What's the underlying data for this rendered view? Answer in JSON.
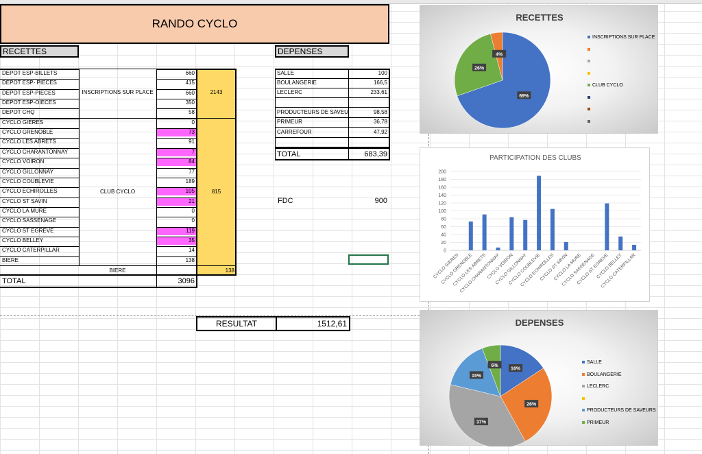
{
  "sheet": {
    "title": "RANDO CYCLO",
    "recettes_header": "RECETTES",
    "depenses_header": "DEPENSES",
    "group_inscriptions": "INSCRIPTIONS SUR PLACE",
    "group_club": "CLUB CYCLO",
    "group_biere": "BIERE",
    "total_inscriptions": "2143",
    "total_club": "815",
    "total_biere": "138",
    "total_label": "TOTAL",
    "total_recettes": "3096",
    "resultat_label": "RESULTAT",
    "resultat_value": "1512,61",
    "fdc_label": "FDC",
    "fdc_value": "900",
    "recettes": [
      {
        "label": "DEPOT ESP-BILLETS",
        "value": "660",
        "pink": false
      },
      {
        "label": "DEPOT ESP- PIECES",
        "value": "415",
        "pink": false
      },
      {
        "label": "DEPOT ESP-PIECES",
        "value": "660",
        "pink": false
      },
      {
        "label": "DEPOT ESP-OIECES",
        "value": "350",
        "pink": false
      },
      {
        "label": "DEPOT CHQ",
        "value": "58",
        "pink": false
      },
      {
        "label": "CYCLO GIERES",
        "value": "0",
        "pink": false
      },
      {
        "label": "CYCLO GRENOBLE",
        "value": "73",
        "pink": true
      },
      {
        "label": "CYCLO LES ABRETS",
        "value": "91",
        "pink": false
      },
      {
        "label": "CYCLO CHARANTONNAY",
        "value": "7",
        "pink": true
      },
      {
        "label": "CYCLO VOIRON",
        "value": "84",
        "pink": true
      },
      {
        "label": "CYCLO GILLONNAY",
        "value": "77",
        "pink": false
      },
      {
        "label": "CYCLO COUBLEVIE",
        "value": "189",
        "pink": false
      },
      {
        "label": "CYCLO ECHIROLLES",
        "value": "105",
        "pink": true
      },
      {
        "label": "CYCLO ST SAVIN",
        "value": "21",
        "pink": true
      },
      {
        "label": "CYCLO LA MURE",
        "value": "0",
        "pink": false
      },
      {
        "label": "CYCLO SASSENAGE",
        "value": "0",
        "pink": false
      },
      {
        "label": "CYCLO ST EGREVE",
        "value": "119",
        "pink": true
      },
      {
        "label": "CYCLO BELLEY",
        "value": "35",
        "pink": true
      },
      {
        "label": "CYCLO CATERPILLAR",
        "value": "14",
        "pink": false
      },
      {
        "label": "BIERE",
        "value": "138",
        "pink": false
      }
    ],
    "depenses": [
      {
        "label": "SALLE",
        "value": "100"
      },
      {
        "label": "BOULANGERIE",
        "value": "166,5"
      },
      {
        "label": "LECLERC",
        "value": "233,61"
      },
      {
        "label": "",
        "value": ""
      },
      {
        "label": "PRODUCTEURS DE SAVEURS",
        "value": "98,58"
      },
      {
        "label": "PRIMEUR",
        "value": "36,78"
      },
      {
        "label": "CARREFOUR",
        "value": "47,92"
      },
      {
        "label": "",
        "value": ""
      }
    ],
    "depenses_total_label": "TOTAL",
    "depenses_total_value": "683,39"
  },
  "chart_data": [
    {
      "type": "pie",
      "title": "RECETTES",
      "slices": [
        {
          "label": "INSCRIPTIONS SUR PLACE",
          "value": 69,
          "color": "#4472c4"
        },
        {
          "label": "CLUB CYCLO",
          "value": 26,
          "color": "#70ad47"
        },
        {
          "label": "",
          "value": 4,
          "color": "#ed7d31"
        }
      ],
      "data_labels": [
        "69%",
        "26%",
        "4%"
      ],
      "legend": [
        {
          "label": "INSCRIPTIONS SUR PLACE",
          "color": "#4472c4"
        },
        {
          "label": "",
          "color": "#ed7d31"
        },
        {
          "label": "",
          "color": "#a5a5a5"
        },
        {
          "label": "",
          "color": "#ffc000"
        },
        {
          "label": "CLUB CYCLO",
          "color": "#70ad47"
        },
        {
          "label": "",
          "color": "#264478"
        },
        {
          "label": "",
          "color": "#9e480e"
        },
        {
          "label": "",
          "color": "#636363"
        }
      ],
      "legend_position": "right"
    },
    {
      "type": "bar",
      "title": "PARTICIPATION DES CLUBS",
      "categories": [
        "CYCLO GIERES",
        "CYCLO GRENOBLE",
        "CYCLO LES ABRETS",
        "CYCLO CHARANTONNAY",
        "CYCLO VOIRON",
        "CYCLO GILLONNAY",
        "CYCLO COUBLEVIE",
        "CYCLO ECHIROLLES",
        "CYCLO ST SAVIN",
        "CYCLO LA MURE",
        "CYCLO SASSENAGE",
        "CYCLO ST EGREVE",
        "CYCLO BELLEY",
        "CYCLO CATERPILLAR"
      ],
      "values": [
        0,
        73,
        91,
        7,
        84,
        77,
        189,
        105,
        21,
        0,
        0,
        119,
        35,
        14
      ],
      "ylim": [
        0,
        200
      ],
      "yticks": [
        0,
        20,
        40,
        60,
        80,
        100,
        120,
        140,
        160,
        180,
        200
      ],
      "grid": true,
      "color": "#4472c4"
    },
    {
      "type": "pie",
      "title": "DEPENSES",
      "slices": [
        {
          "label": "SALLE",
          "value": 100,
          "color": "#4472c4"
        },
        {
          "label": "BOULANGERIE",
          "value": 166.5,
          "color": "#ed7d31"
        },
        {
          "label": "LECLERC",
          "value": 233.61,
          "color": "#a5a5a5"
        },
        {
          "label": "PRODUCTEURS DE SAVEURS",
          "value": 98.58,
          "color": "#5b9bd5"
        },
        {
          "label": "PRIMEUR",
          "value": 36.78,
          "color": "#70ad47"
        }
      ],
      "data_labels": [
        "16%",
        "26%",
        "37%",
        "15%",
        "6%"
      ],
      "legend": [
        {
          "label": "SALLE",
          "color": "#4472c4"
        },
        {
          "label": "BOULANGERIE",
          "color": "#ed7d31"
        },
        {
          "label": "LECLERC",
          "color": "#a5a5a5"
        },
        {
          "label": "",
          "color": "#ffc000"
        },
        {
          "label": "PRODUCTEURS DE SAVEURS",
          "color": "#5b9bd5"
        },
        {
          "label": "PRIMEUR",
          "color": "#70ad47"
        }
      ],
      "legend_position": "right"
    }
  ]
}
